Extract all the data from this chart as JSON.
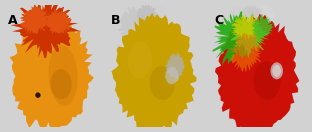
{
  "background_color": "#d2d2d2",
  "figsize": [
    3.12,
    1.32
  ],
  "dpi": 100,
  "labels": [
    "A",
    "B",
    "C"
  ],
  "label_fontsize": 9,
  "label_color": "black",
  "label_fontweight": "bold",
  "heart_A": {
    "body_color": "#e89010",
    "body_color2": "#d07808",
    "top_color": "#cc3300",
    "top_color2": "#e05010",
    "shadow_color": "#a06000",
    "spot_color": "#2a1500"
  },
  "heart_B": {
    "body_color": "#c8a000",
    "body_color2": "#b08800",
    "vessel_color": "#c8c8c8",
    "vessel_color2": "#a8a8a8",
    "gray_patch": "#b0b0b0"
  },
  "heart_C": {
    "body_color": "#cc1008",
    "body_color2": "#aa0800",
    "vessel_color": "#d0d0d0",
    "green1": "#22aa10",
    "green2": "#66cc22",
    "yellow": "#cccc00",
    "orange_patch": "#ee7700",
    "gray_spot": "#c8c8c8"
  }
}
